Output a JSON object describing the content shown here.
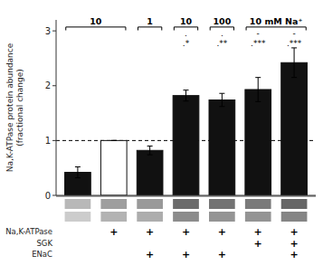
{
  "chart_data": {
    "type": "bar",
    "categories": [
      null,
      null,
      null,
      null,
      null,
      null,
      null
    ],
    "values": [
      0.42,
      1.0,
      0.82,
      1.82,
      1.74,
      1.93,
      2.42
    ],
    "errors": [
      0.1,
      0.0,
      0.08,
      0.1,
      0.12,
      0.22,
      0.27
    ],
    "colors": [
      "#111111",
      "#ffffff",
      "#111111",
      "#111111",
      "#111111",
      "#111111",
      "#111111"
    ],
    "edge_colors": [
      "#111111",
      "#111111",
      "#111111",
      "#111111",
      "#111111",
      "#111111",
      "#111111"
    ],
    "ylabel": "Na,K-ATPase protein abundance\n(fractional change)",
    "ylim": [
      0,
      3.2
    ],
    "yticks": [
      0,
      1,
      2,
      3
    ],
    "reference_line": 1.0,
    "brackets": [
      {
        "label": "10",
        "bar_indices": [
          0,
          1
        ]
      },
      {
        "label": "1",
        "bar_indices": [
          2,
          2
        ]
      },
      {
        "label": "10",
        "bar_indices": [
          3,
          3
        ]
      },
      {
        "label": "100",
        "bar_indices": [
          4,
          4
        ]
      },
      {
        "label": "10 mM Na⁺",
        "bar_indices": [
          5,
          6
        ]
      }
    ],
    "significance": [
      {
        "bar": 3,
        "top": ".",
        "bottom": ".*"
      },
      {
        "bar": 4,
        "top": ".",
        "bottom": ".**"
      },
      {
        "bar": 5,
        "top": "-",
        "bottom": ".***"
      },
      {
        "bar": 6,
        "top": "-",
        "bottom": ".***"
      }
    ],
    "blot": {
      "top": [
        0.72,
        0.62,
        0.6,
        0.42,
        0.45,
        0.48,
        0.4
      ],
      "bottom": [
        0.8,
        0.7,
        0.68,
        0.55,
        0.58,
        0.58,
        0.52
      ]
    },
    "row_mark": "+",
    "rows": [
      {
        "name": "Na,K-ATPase",
        "values": [
          false,
          true,
          true,
          true,
          true,
          true,
          true
        ]
      },
      {
        "name": "SGK",
        "values": [
          false,
          false,
          false,
          false,
          false,
          true,
          true
        ]
      },
      {
        "name": "ENaC",
        "values": [
          false,
          false,
          true,
          true,
          true,
          false,
          true
        ]
      }
    ]
  }
}
